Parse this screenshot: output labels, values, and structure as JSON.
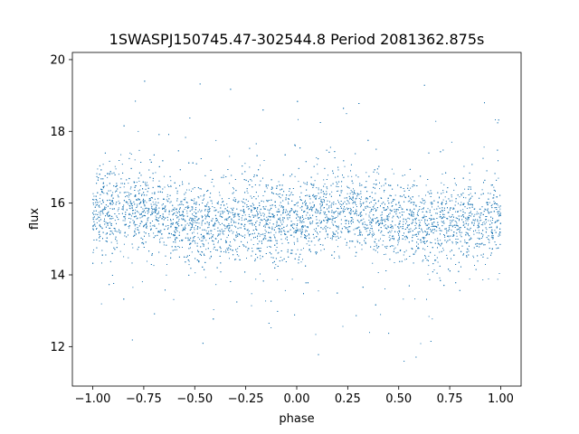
{
  "chart_data": {
    "type": "scatter",
    "title": "1SWASPJ150745.47-302544.8 Period 2081362.875s",
    "xlabel": "phase",
    "ylabel": "flux",
    "xlim": [
      -1.1,
      1.1
    ],
    "ylim": [
      10.9,
      20.2
    ],
    "xticks": [
      -1.0,
      -0.75,
      -0.5,
      -0.25,
      0.0,
      0.25,
      0.5,
      0.75,
      1.0
    ],
    "xtick_labels": [
      "−1.00",
      "−0.75",
      "−0.50",
      "−0.25",
      "0.00",
      "0.25",
      "0.50",
      "0.75",
      "1.00"
    ],
    "yticks": [
      12,
      14,
      16,
      18,
      20
    ],
    "ytick_labels": [
      "12",
      "14",
      "16",
      "18",
      "20"
    ],
    "grid": false,
    "point_color": "#1f77b4",
    "series": [
      {
        "x_range": [
          -1.0,
          1.0
        ],
        "y_center": 15.6,
        "y_spread": 0.55,
        "y_min": 11.3,
        "y_max": 19.7,
        "profile": [
          {
            "x": -1.0,
            "y": 15.7
          },
          {
            "x": -0.9,
            "y": 15.8
          },
          {
            "x": -0.8,
            "y": 15.9
          },
          {
            "x": -0.7,
            "y": 15.8
          },
          {
            "x": -0.6,
            "y": 15.6
          },
          {
            "x": -0.5,
            "y": 15.5
          },
          {
            "x": -0.4,
            "y": 15.4
          },
          {
            "x": -0.3,
            "y": 15.4
          },
          {
            "x": -0.2,
            "y": 15.5
          },
          {
            "x": -0.1,
            "y": 15.4
          },
          {
            "x": 0.0,
            "y": 15.6
          },
          {
            "x": 0.1,
            "y": 15.7
          },
          {
            "x": 0.2,
            "y": 15.8
          },
          {
            "x": 0.3,
            "y": 15.8
          },
          {
            "x": 0.4,
            "y": 15.6
          },
          {
            "x": 0.5,
            "y": 15.5
          },
          {
            "x": 0.6,
            "y": 15.4
          },
          {
            "x": 0.7,
            "y": 15.4
          },
          {
            "x": 0.8,
            "y": 15.5
          },
          {
            "x": 0.9,
            "y": 15.4
          },
          {
            "x": 1.0,
            "y": 15.6
          }
        ]
      }
    ]
  }
}
